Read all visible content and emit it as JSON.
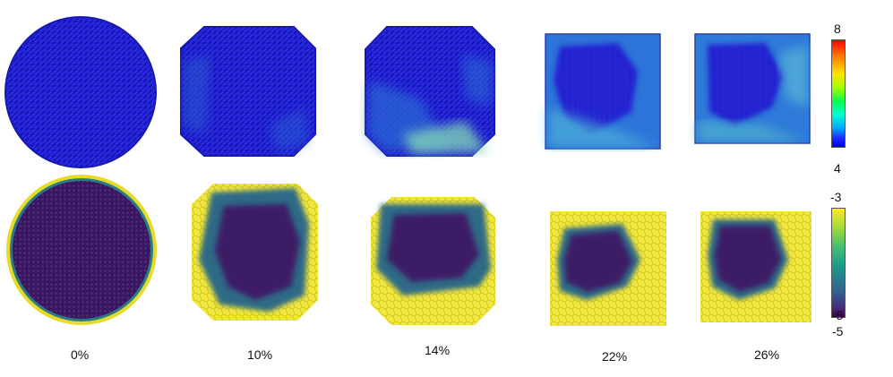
{
  "strains": [
    "0%",
    "10%",
    "14%",
    "22%",
    "26%"
  ],
  "colorbar_top": {
    "max_label": "8",
    "min_label": "4",
    "colors": [
      "#ff0000",
      "#ffe600",
      "#00ff55",
      "#00a8ff",
      "#0000ee"
    ]
  },
  "colorbar_bottom": {
    "max_label": "-3",
    "min_label": "-5",
    "min_label_2": "-5",
    "colors": [
      "#fde725",
      "#4ac16d",
      "#277f8e",
      "#46327e",
      "#440154"
    ]
  },
  "top_row": {
    "base_color": "#2323d8",
    "accent_color": "#3aa0e0",
    "hot_color": "#8fd6b0"
  },
  "bottom_row": {
    "base_color": "#3a1560",
    "edge_color": "#e8dc2a",
    "mid_color": "#2e6a86"
  }
}
